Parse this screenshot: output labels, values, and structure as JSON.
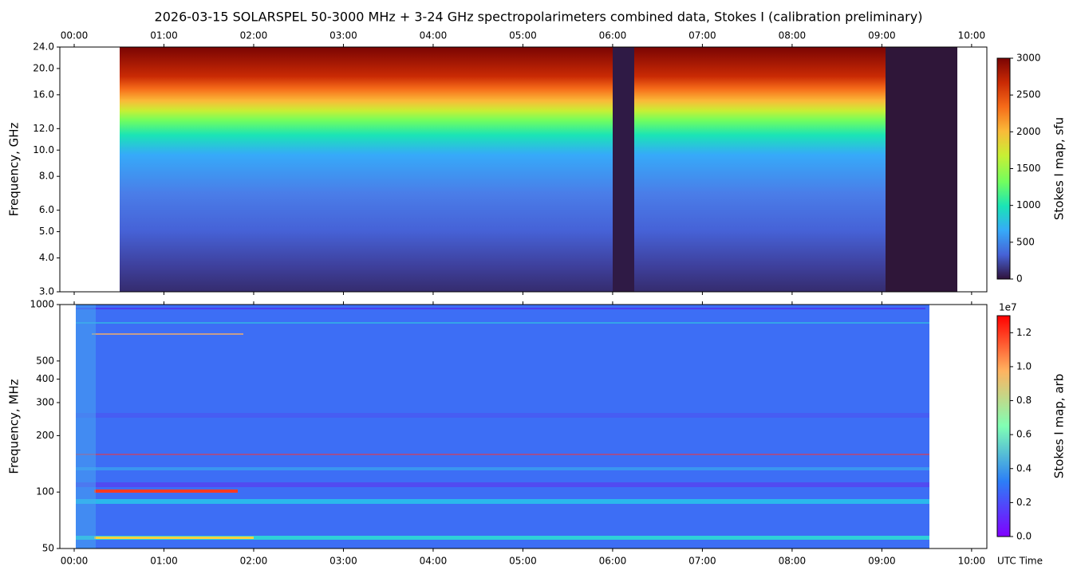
{
  "title": "2026-03-15  SOLARSPEL  50-3000 MHz  +  3-24 GHz  spectropolarimeters combined data,  Stokes I  (calibration preliminary)",
  "x_label": "UTC Time",
  "chart_data": [
    {
      "type": "heatmap",
      "y_label": "Frequency, GHz",
      "log_y": true,
      "xlim": [
        -0.16,
        10.17
      ],
      "xticks": [
        {
          "value": 0,
          "label": "00:00"
        },
        {
          "value": 1,
          "label": "01:00"
        },
        {
          "value": 2,
          "label": "02:00"
        },
        {
          "value": 3,
          "label": "03:00"
        },
        {
          "value": 4,
          "label": "04:00"
        },
        {
          "value": 5,
          "label": "05:00"
        },
        {
          "value": 6,
          "label": "06:00"
        },
        {
          "value": 7,
          "label": "07:00"
        },
        {
          "value": 8,
          "label": "08:00"
        },
        {
          "value": 9,
          "label": "09:00"
        },
        {
          "value": 10,
          "label": "10:00"
        }
      ],
      "ylim": [
        3,
        24
      ],
      "yticks": [
        {
          "value": 3,
          "label": "3.0"
        },
        {
          "value": 4,
          "label": "4.0"
        },
        {
          "value": 5,
          "label": "5.0"
        },
        {
          "value": 6,
          "label": "6.0"
        },
        {
          "value": 8,
          "label": "8.0"
        },
        {
          "value": 10,
          "label": "10.0"
        },
        {
          "value": 12,
          "label": "12.0"
        },
        {
          "value": 16,
          "label": "16.0"
        },
        {
          "value": 20,
          "label": "20.0"
        },
        {
          "value": 24,
          "label": "24.0"
        }
      ],
      "colorbar": {
        "label": "Stokes I map, sfu",
        "lim": [
          0,
          3000
        ],
        "ticks": [
          0,
          500,
          1000,
          1500,
          2000,
          2500,
          3000
        ]
      }
    },
    {
      "type": "heatmap",
      "y_label": "Frequency, MHz",
      "log_y": true,
      "xlim": [
        -0.16,
        10.17
      ],
      "xticks": [
        {
          "value": 0,
          "label": "00:00"
        },
        {
          "value": 1,
          "label": "01:00"
        },
        {
          "value": 2,
          "label": "02:00"
        },
        {
          "value": 3,
          "label": "03:00"
        },
        {
          "value": 4,
          "label": "04:00"
        },
        {
          "value": 5,
          "label": "05:00"
        },
        {
          "value": 6,
          "label": "06:00"
        },
        {
          "value": 7,
          "label": "07:00"
        },
        {
          "value": 8,
          "label": "08:00"
        },
        {
          "value": 9,
          "label": "09:00"
        },
        {
          "value": 10,
          "label": "10:00"
        }
      ],
      "ylim": [
        50,
        1000
      ],
      "yticks": [
        50,
        100,
        200,
        300,
        400,
        500,
        1000
      ],
      "colorbar": {
        "label": "Stokes I map, arb",
        "scale_label": "1e7",
        "lim": [
          0,
          1.3
        ],
        "ticks": [
          {
            "value": 0,
            "label": "0.0"
          },
          {
            "value": 0.2,
            "label": "0.2"
          },
          {
            "value": 0.4,
            "label": "0.4"
          },
          {
            "value": 0.6,
            "label": "0.6"
          },
          {
            "value": 0.8,
            "label": "0.8"
          },
          {
            "value": 1.0,
            "label": "1.0"
          },
          {
            "value": 1.2,
            "label": "1.2"
          }
        ]
      }
    }
  ]
}
